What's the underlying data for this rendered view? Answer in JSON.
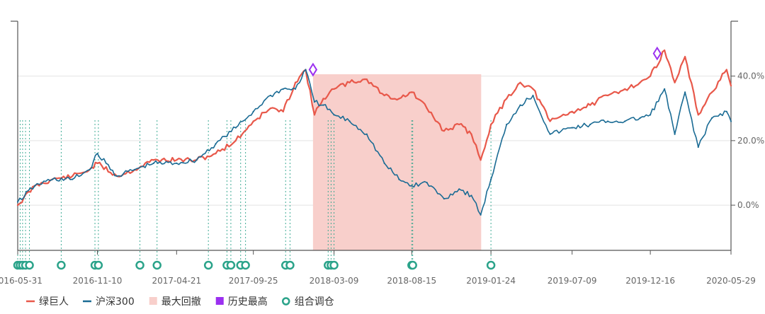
{
  "chart_data": {
    "type": "line",
    "x_ticks": [
      "2016-05-31",
      "2016-11-10",
      "2017-04-21",
      "2017-09-25",
      "2018-03-09",
      "2018-08-15",
      "2019-01-24",
      "2019-07-09",
      "2019-12-16",
      "2020-05-29"
    ],
    "y_ticks": [
      {
        "value": 0,
        "label": "0.0%"
      },
      {
        "value": 20,
        "label": "20.0%"
      },
      {
        "value": 40,
        "label": "40.0%"
      }
    ],
    "ylim": [
      -14,
      57
    ],
    "grid": true,
    "legend_position": "bottom-left",
    "series": [
      {
        "name": "绿巨人",
        "color": "#e8584a",
        "x": [
          "2016-05-31",
          "2016-07-05",
          "2016-08-10",
          "2016-09-20",
          "2016-10-25",
          "2016-11-10",
          "2016-12-20",
          "2017-01-25",
          "2017-03-05",
          "2017-04-21",
          "2017-06-01",
          "2017-07-10",
          "2017-08-20",
          "2017-09-25",
          "2017-10-30",
          "2017-11-25",
          "2017-12-20",
          "2018-01-10",
          "2018-01-28",
          "2018-02-15",
          "2018-03-09",
          "2018-04-10",
          "2018-05-15",
          "2018-06-20",
          "2018-07-20",
          "2018-08-15",
          "2018-09-15",
          "2018-10-20",
          "2018-11-20",
          "2018-12-15",
          "2019-01-03",
          "2019-01-24",
          "2019-02-25",
          "2019-03-25",
          "2019-04-20",
          "2019-05-25",
          "2019-07-09",
          "2019-08-15",
          "2019-09-20",
          "2019-10-25",
          "2019-11-25",
          "2019-12-16",
          "2020-01-14",
          "2020-02-04",
          "2020-02-25",
          "2020-03-23",
          "2020-04-20",
          "2020-05-20",
          "2020-05-29"
        ],
        "values": [
          0,
          6,
          8,
          9,
          11,
          13,
          9,
          11,
          14,
          14,
          14,
          16,
          20,
          26,
          30,
          29,
          38,
          42,
          28,
          33,
          36,
          38,
          39,
          34,
          33,
          35,
          30,
          23,
          25,
          22,
          14,
          25,
          33,
          38,
          36,
          26,
          29,
          31,
          34,
          36,
          38,
          40,
          48,
          38,
          46,
          28,
          35,
          42,
          37
        ]
      },
      {
        "name": "沪深300",
        "color": "#1a6b94",
        "x": [
          "2016-05-31",
          "2016-07-05",
          "2016-08-10",
          "2016-09-20",
          "2016-10-25",
          "2016-11-10",
          "2016-12-20",
          "2017-01-25",
          "2017-03-05",
          "2017-04-21",
          "2017-06-01",
          "2017-07-10",
          "2017-08-20",
          "2017-09-25",
          "2017-10-30",
          "2017-11-25",
          "2017-12-20",
          "2018-01-10",
          "2018-01-28",
          "2018-02-15",
          "2018-03-09",
          "2018-04-10",
          "2018-05-15",
          "2018-06-20",
          "2018-07-20",
          "2018-08-15",
          "2018-09-15",
          "2018-10-20",
          "2018-11-20",
          "2018-12-15",
          "2019-01-03",
          "2019-01-24",
          "2019-02-25",
          "2019-03-25",
          "2019-04-20",
          "2019-05-25",
          "2019-07-09",
          "2019-08-15",
          "2019-09-20",
          "2019-10-25",
          "2019-11-25",
          "2019-12-16",
          "2020-01-14",
          "2020-02-04",
          "2020-02-25",
          "2020-03-23",
          "2020-04-20",
          "2020-05-20",
          "2020-05-29"
        ],
        "values": [
          1,
          6,
          8,
          8,
          11,
          16,
          9,
          11,
          13,
          13,
          14,
          19,
          24,
          29,
          34,
          36,
          36,
          42,
          32,
          31,
          28,
          26,
          22,
          13,
          8,
          6,
          7,
          2,
          5,
          3,
          -3,
          8,
          25,
          31,
          34,
          22,
          24,
          25,
          26,
          26,
          27,
          28,
          36,
          22,
          35,
          18,
          27,
          29,
          26
        ]
      }
    ],
    "max_drawdown": {
      "name": "最大回撤",
      "start": "2018-01-25",
      "end": "2019-01-04",
      "color": "#f8cfcb"
    },
    "all_time_highs": {
      "name": "历史最高",
      "color": "#9b30f0",
      "points": [
        {
          "x": "2018-01-25",
          "y": 42
        },
        {
          "x": "2019-12-30",
          "y": 47
        }
      ]
    },
    "rebalances": {
      "name": "组合调仓",
      "color": "#2ba38a",
      "dates": [
        "2016-05-31",
        "2016-06-05",
        "2016-06-10",
        "2016-06-16",
        "2016-06-24",
        "2016-08-28",
        "2016-11-05",
        "2016-11-12",
        "2017-02-05",
        "2017-03-12",
        "2017-06-25",
        "2017-08-02",
        "2017-08-10",
        "2017-08-30",
        "2017-09-09",
        "2017-11-30",
        "2017-12-09",
        "2018-02-25",
        "2018-03-03",
        "2018-03-09",
        "2018-08-15",
        "2018-08-17",
        "2019-01-24"
      ]
    }
  }
}
